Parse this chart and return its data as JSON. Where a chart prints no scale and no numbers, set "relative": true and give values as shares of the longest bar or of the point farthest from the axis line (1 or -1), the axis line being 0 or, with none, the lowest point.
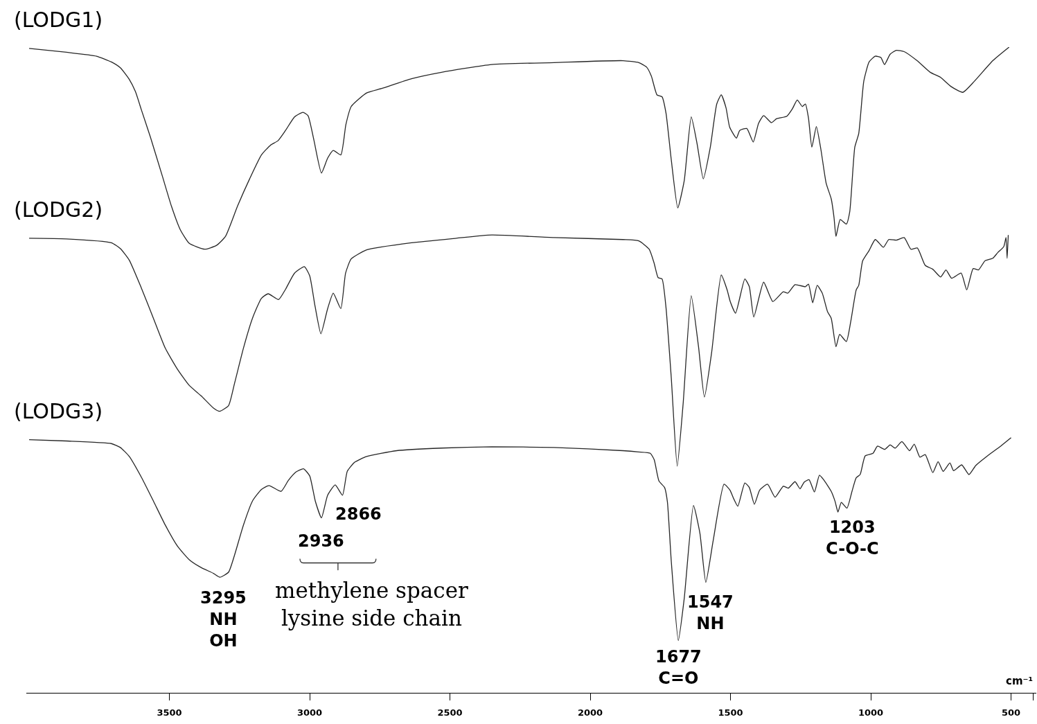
{
  "chart_data": {
    "type": "line",
    "relative": true,
    "xlabel": "cm⁻¹",
    "xlim": [
      4010,
      410
    ],
    "xticks": [
      3500,
      3000,
      2500,
      2000,
      1500,
      1000,
      500,
      {
        "value": 420,
        "label": null
      }
    ],
    "series": [
      {
        "name": "(LODG1)",
        "color": "#262626",
        "x": [
          4000,
          3867,
          3760,
          3707,
          3675,
          3643,
          3621,
          3600,
          3568,
          3525,
          3493,
          3461,
          3429,
          3374,
          3332,
          3300,
          3257,
          3214,
          3172,
          3140,
          3113,
          3086,
          3054,
          3024,
          3006,
          2985,
          2958,
          2936,
          2916,
          2889,
          2871,
          2852,
          2797,
          2743,
          2637,
          2530,
          2351,
          2129,
          1883,
          1827,
          1799,
          1782,
          1762,
          1744,
          1730,
          1711,
          1688,
          1665,
          1640,
          1619,
          1597,
          1572,
          1549,
          1533,
          1516,
          1503,
          1479,
          1467,
          1442,
          1419,
          1400,
          1382,
          1354,
          1336,
          1299,
          1280,
          1262,
          1244,
          1233,
          1222,
          1210,
          1194,
          1178,
          1159,
          1141,
          1131,
          1124,
          1109,
          1087,
          1075,
          1057,
          1043,
          1025,
          1006,
          984,
          964,
          951,
          931,
          909,
          881,
          835,
          788,
          751,
          714,
          672,
          631,
          565,
          507
        ],
        "values": [
          0.998,
          0.992,
          0.986,
          0.977,
          0.968,
          0.95,
          0.931,
          0.903,
          0.861,
          0.8,
          0.754,
          0.717,
          0.696,
          0.687,
          0.693,
          0.707,
          0.754,
          0.796,
          0.833,
          0.848,
          0.855,
          0.871,
          0.892,
          0.899,
          0.894,
          0.856,
          0.805,
          0.828,
          0.84,
          0.833,
          0.88,
          0.908,
          0.929,
          0.936,
          0.951,
          0.961,
          0.973,
          0.976,
          0.979,
          0.976,
          0.969,
          0.955,
          0.926,
          0.923,
          0.898,
          0.825,
          0.751,
          0.793,
          0.892,
          0.85,
          0.796,
          0.845,
          0.912,
          0.926,
          0.906,
          0.876,
          0.859,
          0.871,
          0.874,
          0.853,
          0.882,
          0.894,
          0.883,
          0.889,
          0.893,
          0.904,
          0.918,
          0.908,
          0.912,
          0.89,
          0.845,
          0.877,
          0.842,
          0.789,
          0.765,
          0.736,
          0.707,
          0.733,
          0.726,
          0.745,
          0.845,
          0.866,
          0.947,
          0.977,
          0.986,
          0.984,
          0.973,
          0.989,
          0.995,
          0.993,
          0.979,
          0.961,
          0.953,
          0.939,
          0.93,
          0.947,
          0.979,
          1.0
        ]
      },
      {
        "name": "(LODG2)",
        "color": "#262626",
        "x": [
          4000,
          3867,
          3707,
          3675,
          3643,
          3600,
          3557,
          3515,
          3471,
          3429,
          3387,
          3343,
          3321,
          3289,
          3268,
          3236,
          3204,
          3172,
          3148,
          3111,
          3086,
          3054,
          3019,
          3000,
          2981,
          2960,
          2936,
          2916,
          2889,
          2872,
          2852,
          2797,
          2637,
          2477,
          2351,
          2129,
          1883,
          1827,
          1790,
          1772,
          1758,
          1744,
          1730,
          1711,
          1690,
          1669,
          1640,
          1614,
          1593,
          1567,
          1533,
          1512,
          1501,
          1482,
          1449,
          1433,
          1417,
          1382,
          1349,
          1312,
          1296,
          1270,
          1233,
          1222,
          1207,
          1191,
          1173,
          1154,
          1141,
          1124,
          1111,
          1087,
          1071,
          1052,
          1043,
          1029,
          1006,
          984,
          955,
          936,
          909,
          881,
          857,
          834,
          806,
          779,
          751,
          732,
          712,
          678,
          658,
          635,
          616,
          593,
          565,
          547,
          526,
          518,
          514,
          510
        ],
        "values": [
          0.704,
          0.703,
          0.697,
          0.688,
          0.67,
          0.627,
          0.58,
          0.534,
          0.501,
          0.476,
          0.46,
          0.441,
          0.436,
          0.445,
          0.479,
          0.534,
          0.58,
          0.611,
          0.618,
          0.609,
          0.625,
          0.65,
          0.66,
          0.646,
          0.599,
          0.556,
          0.595,
          0.619,
          0.595,
          0.65,
          0.672,
          0.686,
          0.697,
          0.704,
          0.709,
          0.705,
          0.702,
          0.7,
          0.687,
          0.665,
          0.643,
          0.641,
          0.597,
          0.487,
          0.351,
          0.447,
          0.615,
          0.536,
          0.458,
          0.528,
          0.647,
          0.624,
          0.606,
          0.588,
          0.641,
          0.629,
          0.582,
          0.636,
          0.606,
          0.621,
          0.619,
          0.632,
          0.629,
          0.633,
          0.604,
          0.631,
          0.619,
          0.59,
          0.58,
          0.536,
          0.555,
          0.544,
          0.576,
          0.624,
          0.631,
          0.669,
          0.685,
          0.702,
          0.69,
          0.702,
          0.701,
          0.705,
          0.687,
          0.689,
          0.662,
          0.656,
          0.644,
          0.655,
          0.642,
          0.65,
          0.624,
          0.657,
          0.655,
          0.669,
          0.673,
          0.682,
          0.691,
          0.705,
          0.673,
          0.709
        ]
      },
      {
        "name": "(LODG3)",
        "color": "#262626",
        "x": [
          4000,
          3867,
          3707,
          3675,
          3643,
          3600,
          3557,
          3515,
          3471,
          3429,
          3387,
          3343,
          3320,
          3289,
          3268,
          3236,
          3204,
          3172,
          3145,
          3102,
          3076,
          3049,
          3022,
          3000,
          2980,
          2958,
          2936,
          2909,
          2883,
          2866,
          2840,
          2797,
          2690,
          2530,
          2351,
          2129,
          1883,
          1827,
          1786,
          1772,
          1755,
          1735,
          1725,
          1711,
          1686,
          1665,
          1632,
          1609,
          1588,
          1562,
          1523,
          1502,
          1488,
          1474,
          1449,
          1433,
          1415,
          1396,
          1368,
          1341,
          1312,
          1294,
          1270,
          1252,
          1238,
          1220,
          1201,
          1183,
          1168,
          1141,
          1127,
          1117,
          1105,
          1085,
          1067,
          1052,
          1038,
          1020,
          992,
          976,
          950,
          931,
          913,
          889,
          862,
          845,
          825,
          806,
          779,
          760,
          742,
          718,
          705,
          676,
          650,
          626,
          584,
          537,
          500
        ],
        "values": [
          0.392,
          0.39,
          0.386,
          0.38,
          0.366,
          0.334,
          0.297,
          0.26,
          0.227,
          0.206,
          0.194,
          0.185,
          0.179,
          0.187,
          0.213,
          0.26,
          0.297,
          0.315,
          0.321,
          0.312,
          0.329,
          0.342,
          0.347,
          0.336,
          0.297,
          0.271,
          0.306,
          0.322,
          0.306,
          0.343,
          0.357,
          0.366,
          0.375,
          0.379,
          0.381,
          0.38,
          0.375,
          0.373,
          0.371,
          0.361,
          0.328,
          0.318,
          0.296,
          0.203,
          0.081,
          0.146,
          0.29,
          0.247,
          0.171,
          0.235,
          0.323,
          0.314,
          0.3,
          0.289,
          0.325,
          0.318,
          0.292,
          0.314,
          0.323,
          0.303,
          0.32,
          0.317,
          0.327,
          0.316,
          0.326,
          0.33,
          0.311,
          0.337,
          0.33,
          0.312,
          0.296,
          0.28,
          0.295,
          0.286,
          0.312,
          0.333,
          0.338,
          0.367,
          0.371,
          0.382,
          0.377,
          0.384,
          0.379,
          0.389,
          0.375,
          0.385,
          0.365,
          0.369,
          0.341,
          0.358,
          0.343,
          0.356,
          0.344,
          0.353,
          0.338,
          0.352,
          0.367,
          0.382,
          0.395
        ]
      }
    ],
    "annotations": [
      "3295\nNH\nOH",
      "2936",
      "2866",
      "methylene spacer\nlysine side chain",
      "1677\nC=O",
      "1547\nNH",
      "1203\nC-O-C"
    ]
  }
}
